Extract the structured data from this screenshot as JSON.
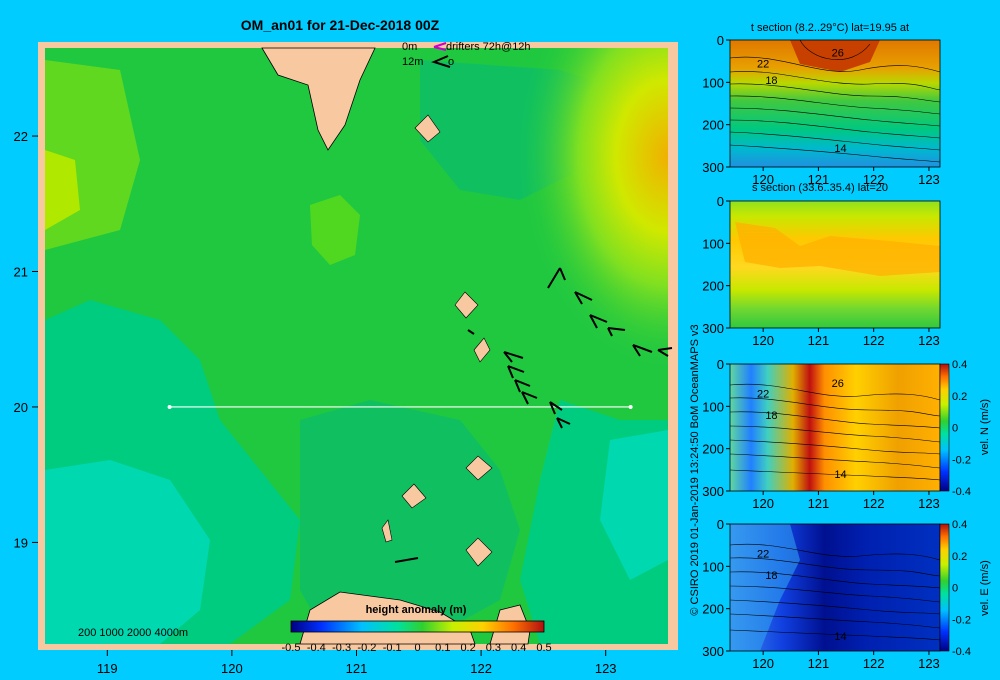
{
  "colors": {
    "background": "#00ccff",
    "land": "#f8c8a0",
    "frame": "#f8c8a0",
    "transect": "#ffffff",
    "drifter_0m": "#cc00cc",
    "drifter_12m": "#000000"
  },
  "map": {
    "title": "OM_an01 for 21-Dec-2018 00Z",
    "legend_0m": "0m",
    "legend_12m": "12m",
    "legend_drifters": "drifters 72h@12h",
    "legend_12m_suffix": "o",
    "depth_contours": "200 1000 2000 4000m",
    "colorbar_title": "height anomaly (m)"
  },
  "credit": "© CSIRO 2019   01-Jan-2019 13:24:50 BoM OceanMAPS v3",
  "chart_data": [
    {
      "type": "heatmap",
      "name": "height anomaly map",
      "title": "OM_an01 for 21-Dec-2018 00Z",
      "xlim": [
        118.5,
        123.5
      ],
      "ylim": [
        18.25,
        22.65
      ],
      "x_ticks": [
        119,
        120,
        121,
        122,
        123
      ],
      "y_ticks": [
        19,
        20,
        21,
        22
      ],
      "colorbar": {
        "label": "height anomaly (m)",
        "range": [
          -0.5,
          0.5
        ],
        "ticks": [
          -0.5,
          -0.4,
          -0.3,
          -0.2,
          -0.1,
          0,
          0.1,
          0.2,
          0.3,
          0.4,
          0.5
        ],
        "tick_labels": [
          "-0.5",
          "-0.4",
          "-0.3",
          "-0.2",
          "-0.1",
          "0",
          "0.1",
          "0.2",
          "0.3",
          "0.4",
          "0.5"
        ]
      },
      "transect": {
        "lat": 20,
        "lon_start": 119.5,
        "lon_end": 123.2
      }
    },
    {
      "type": "heatmap",
      "name": "t section",
      "title": "t section (8.2..29°C) lat=19.95 at",
      "xlim": [
        119.4,
        123.2
      ],
      "ylim": [
        300,
        0
      ],
      "x_ticks": [
        120,
        121,
        122,
        123
      ],
      "y_ticks": [
        0,
        100,
        200,
        300
      ],
      "contour_labels": [
        {
          "text": "26",
          "x": 121.35,
          "y": 30
        },
        {
          "text": "22",
          "x": 120.0,
          "y": 55
        },
        {
          "text": "18",
          "x": 120.15,
          "y": 95
        },
        {
          "text": "14",
          "x": 121.4,
          "y": 255
        }
      ]
    },
    {
      "type": "heatmap",
      "name": "s section",
      "title": "s section (33.6..35.4) lat=20",
      "xlim": [
        119.4,
        123.2
      ],
      "ylim": [
        300,
        0
      ],
      "x_ticks": [
        120,
        121,
        122,
        123
      ],
      "y_ticks": [
        0,
        100,
        200,
        300
      ]
    },
    {
      "type": "heatmap",
      "name": "vel N section",
      "xlim": [
        119.4,
        123.2
      ],
      "ylim": [
        300,
        0
      ],
      "x_ticks": [
        120,
        121,
        122,
        123
      ],
      "y_ticks": [
        0,
        100,
        200,
        300
      ],
      "colorbar": {
        "label": "vel. N (m/s)",
        "range": [
          -0.4,
          0.4
        ],
        "ticks": [
          -0.4,
          -0.2,
          0,
          0.2,
          0.4
        ],
        "tick_labels": [
          "-0.4",
          "-0.2",
          "0",
          "0.2",
          "0.4"
        ]
      },
      "contour_labels": [
        {
          "text": "26",
          "x": 121.35,
          "y": 45
        },
        {
          "text": "22",
          "x": 120.0,
          "y": 70
        },
        {
          "text": "18",
          "x": 120.15,
          "y": 120
        },
        {
          "text": "14",
          "x": 121.4,
          "y": 260
        }
      ]
    },
    {
      "type": "heatmap",
      "name": "vel E section",
      "xlim": [
        119.4,
        123.2
      ],
      "ylim": [
        300,
        0
      ],
      "x_ticks": [
        120,
        121,
        122,
        123
      ],
      "y_ticks": [
        0,
        100,
        200,
        300
      ],
      "colorbar": {
        "label": "vel. E (m/s)",
        "range": [
          -0.4,
          0.4
        ],
        "ticks": [
          -0.4,
          -0.2,
          0,
          0.2,
          0.4
        ],
        "tick_labels": [
          "-0.4",
          "-0.2",
          "0",
          "0.2",
          "0.4"
        ]
      },
      "contour_labels": [
        {
          "text": "22",
          "x": 120.0,
          "y": 70
        },
        {
          "text": "18",
          "x": 120.15,
          "y": 120
        },
        {
          "text": "14",
          "x": 121.4,
          "y": 265
        }
      ]
    }
  ]
}
